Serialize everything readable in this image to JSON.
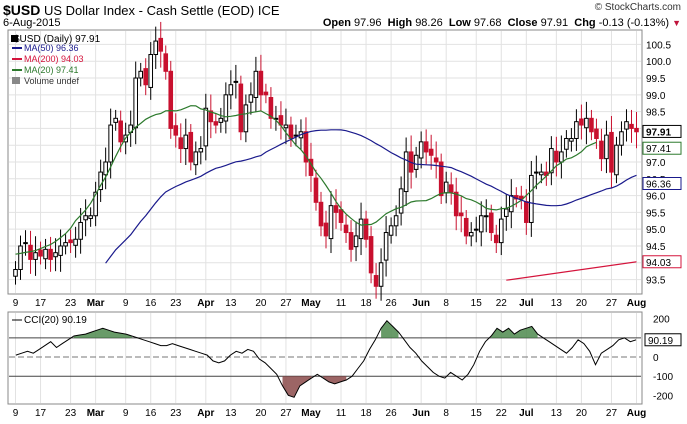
{
  "header": {
    "symbol": "$USD",
    "name": "US Dollar Index - Cash Settle (EOD)",
    "exchange": "ICE",
    "date": "6-Aug-2015",
    "source": "© StockCharts.com",
    "open_label": "Open",
    "open": "97.96",
    "high_label": "High",
    "high": "98.26",
    "low_label": "Low",
    "low": "97.68",
    "close_label": "Close",
    "close": "97.91",
    "chg_label": "Chg",
    "chg": "-0.13 (-0.13%)"
  },
  "legend": {
    "main": "$USD (Daily) 97.91",
    "ma50": "MA(50) 96.36",
    "ma200": "MA(200) 94.03",
    "ma20": "MA(20) 97.41",
    "volume": "Volume undef"
  },
  "cci_legend": "CCI(20) 90.19",
  "colors": {
    "up": "#000000",
    "down": "#c8102e",
    "ma50": "#1a1a8c",
    "ma200": "#d4143c",
    "ma20": "#2d7a2d",
    "cci_pos": "#4e8a4e",
    "cci_neg": "#8b4a4a"
  },
  "chart_data": [
    {
      "type": "candlestick",
      "title": "$USD (Daily) 97.91",
      "x_ticks": [
        "9",
        "17",
        "23",
        "Mar",
        "9",
        "16",
        "23",
        "Apr",
        "13",
        "20",
        "27",
        "May",
        "11",
        "18",
        "26",
        "Jun",
        "8",
        "15",
        "22",
        "Jul",
        "13",
        "20",
        "27",
        "Aug"
      ],
      "ylim": [
        93.1,
        100.9
      ],
      "y_ticks": [
        "93.5",
        "94.0",
        "94.5",
        "95.0",
        "95.5",
        "96.0",
        "96.5",
        "97.0",
        "97.5",
        "98.0",
        "98.5",
        "99.0",
        "99.5",
        "100.0",
        "100.5"
      ],
      "last_value_tags": {
        "close": "97.91",
        "ma20": "97.41",
        "ma50": "96.36",
        "ma200": "94.03"
      },
      "close": [
        93.8,
        94.5,
        94.6,
        94.1,
        94.3,
        94.2,
        94.4,
        94.1,
        94.3,
        94.5,
        94.6,
        94.6,
        94.7,
        95.2,
        95.4,
        95.4,
        96.1,
        96.7,
        97.0,
        98.1,
        98.3,
        97.6,
        97.8,
        98.1,
        99.5,
        99.7,
        99.3,
        100.2,
        100.6,
        100.3,
        99.7,
        98.0,
        97.8,
        97.4,
        97.8,
        97.0,
        97.3,
        97.4,
        98.6,
        98.2,
        98.1,
        98.3,
        99.0,
        99.3,
        99.4,
        97.9,
        98.7,
        99.0,
        99.7,
        99.0,
        99.0,
        98.3,
        98.3,
        98.1,
        98.1,
        97.7,
        97.8,
        97.9,
        97.0,
        96.6,
        95.8,
        95.1,
        94.8,
        95.7,
        95.5,
        95.2,
        94.9,
        94.4,
        94.8,
        95.3,
        94.7,
        93.7,
        93.3,
        94.0,
        94.9,
        95.1,
        95.4,
        96.2,
        97.3,
        96.7,
        97.2,
        97.6,
        97.3,
        97.2,
        97.0,
        96.0,
        96.4,
        96.1,
        95.4,
        95.4,
        94.8,
        94.9,
        95.0,
        95.4,
        95.4,
        94.9,
        94.6,
        95.3,
        95.6,
        96.0,
        95.9,
        95.9,
        95.2,
        96.6,
        96.7,
        96.7,
        96.6,
        97.4,
        97.0,
        97.3,
        97.7,
        97.7,
        98.2,
        98.1,
        98.3,
        97.9,
        97.7,
        97.1,
        97.8,
        96.7,
        97.5,
        97.9,
        98.2,
        98.0,
        97.9
      ]
    },
    {
      "type": "line",
      "title": "CCI(20) 90.19",
      "ylim": [
        -240,
        230
      ],
      "y_ticks": [
        "200",
        "100",
        "0",
        "-100",
        "-200"
      ],
      "guides": [
        100,
        0,
        -100
      ],
      "last_value": "90.19",
      "values": [
        10,
        20,
        30,
        20,
        40,
        60,
        80,
        50,
        70,
        90,
        110,
        115,
        120,
        130,
        140,
        150,
        140,
        130,
        125,
        120,
        110,
        100,
        90,
        80,
        70,
        60,
        60,
        70,
        60,
        50,
        40,
        30,
        20,
        10,
        -20,
        -30,
        -20,
        10,
        30,
        20,
        40,
        30,
        -10,
        -30,
        -60,
        -90,
        -150,
        -200,
        -210,
        -150,
        -130,
        -110,
        -90,
        -110,
        -130,
        -140,
        -130,
        -120,
        -100,
        -60,
        -20,
        40,
        90,
        150,
        190,
        160,
        130,
        90,
        50,
        20,
        -20,
        -50,
        -80,
        -100,
        -110,
        -80,
        -100,
        -120,
        -90,
        -40,
        30,
        80,
        110,
        150,
        130,
        150,
        120,
        140,
        150,
        160,
        120,
        100,
        80,
        60,
        40,
        20,
        50,
        90,
        70,
        30,
        -40,
        20,
        40,
        60,
        90,
        100,
        80,
        90
      ]
    }
  ]
}
